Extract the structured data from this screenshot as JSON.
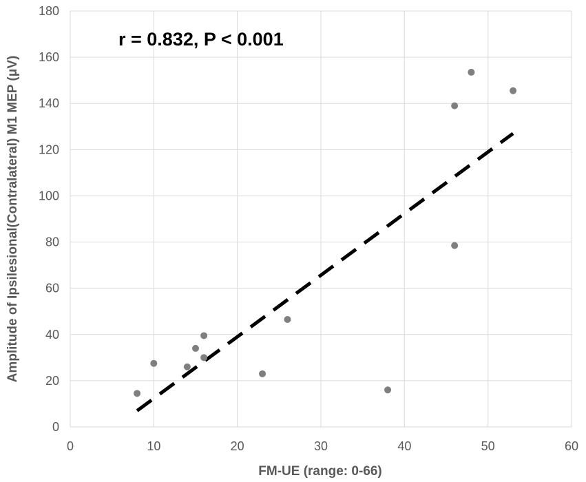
{
  "chart_data": {
    "type": "scatter",
    "xlabel": "FM-UE (range: 0-66)",
    "ylabel": "Amplitude of Ipsilesional(Contralateral) M1 MEP (μV)",
    "xlim": [
      0,
      60
    ],
    "ylim": [
      0,
      180
    ],
    "x_ticks": [
      0,
      10,
      20,
      30,
      40,
      50,
      60
    ],
    "y_ticks": [
      0,
      20,
      40,
      60,
      80,
      100,
      120,
      140,
      160,
      180
    ],
    "grid": true,
    "annotation": "r = 0.832, P < 0.001",
    "points": [
      {
        "x": 8,
        "y": 14.5
      },
      {
        "x": 10,
        "y": 27.5
      },
      {
        "x": 14,
        "y": 26
      },
      {
        "x": 15,
        "y": 34
      },
      {
        "x": 16,
        "y": 39.5
      },
      {
        "x": 16,
        "y": 30
      },
      {
        "x": 23,
        "y": 23
      },
      {
        "x": 26,
        "y": 46.5
      },
      {
        "x": 38,
        "y": 16
      },
      {
        "x": 46,
        "y": 139
      },
      {
        "x": 46,
        "y": 78.5
      },
      {
        "x": 48,
        "y": 153.5
      },
      {
        "x": 53,
        "y": 145.5
      }
    ],
    "trendline": {
      "style": "dashed",
      "x": [
        8,
        53
      ],
      "y": [
        7,
        127
      ]
    },
    "colors": {
      "points": "#7f7f7f",
      "trendline": "#000000",
      "grid": "#d9d9d9"
    }
  }
}
